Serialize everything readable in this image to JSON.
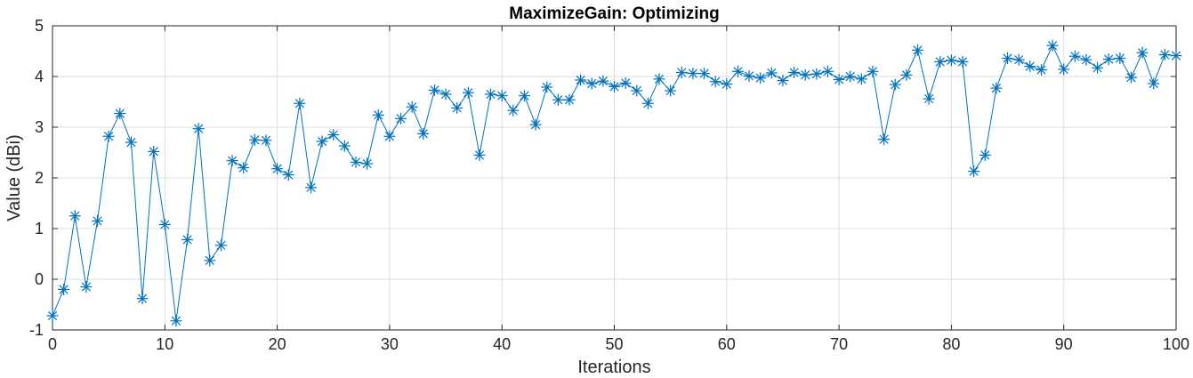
{
  "chart_data": {
    "type": "line",
    "title": "MaximizeGain: Optimizing",
    "xlabel": "Iterations",
    "ylabel": "Value (dBi)",
    "xlim": [
      0,
      100
    ],
    "ylim": [
      -1,
      5
    ],
    "xticks": [
      0,
      10,
      20,
      30,
      40,
      50,
      60,
      70,
      80,
      90,
      100
    ],
    "yticks": [
      -1,
      0,
      1,
      2,
      3,
      4,
      5
    ],
    "xtick_labels": [
      "0",
      "10",
      "20",
      "30",
      "40",
      "50",
      "60",
      "70",
      "80",
      "90",
      "100"
    ],
    "ytick_labels": [
      "-1",
      "0",
      "1",
      "2",
      "3",
      "4",
      "5"
    ],
    "grid": true,
    "color": "#0072BD",
    "marker": "asterisk",
    "series": [
      {
        "x": [
          0,
          1,
          2,
          3,
          4,
          5,
          6,
          7,
          8,
          9,
          10,
          11,
          12,
          13,
          14,
          15,
          16,
          17,
          18,
          19,
          20,
          21,
          22,
          23,
          24,
          25,
          26,
          27,
          28,
          29,
          30,
          31,
          32,
          33,
          34,
          35,
          36,
          37,
          38,
          39,
          40,
          41,
          42,
          43,
          44,
          45,
          46,
          47,
          48,
          49,
          50,
          51,
          52,
          53,
          54,
          55,
          56,
          57,
          58,
          59,
          60,
          61,
          62,
          63,
          64,
          65,
          66,
          67,
          68,
          69,
          70,
          71,
          72,
          73,
          74,
          75,
          76,
          77,
          78,
          79,
          80,
          81,
          82,
          83,
          84,
          85,
          86,
          87,
          88,
          89,
          90,
          91,
          92,
          93,
          94,
          95,
          96,
          97,
          98,
          99,
          100
        ],
        "values": [
          -0.72,
          -0.2,
          1.25,
          -0.15,
          1.15,
          2.82,
          3.27,
          2.7,
          -0.38,
          2.52,
          1.08,
          -0.82,
          0.78,
          2.97,
          0.37,
          0.67,
          2.34,
          2.2,
          2.75,
          2.74,
          2.18,
          2.06,
          3.47,
          1.81,
          2.72,
          2.85,
          2.63,
          2.31,
          2.28,
          3.24,
          2.82,
          3.17,
          3.4,
          2.87,
          3.73,
          3.65,
          3.38,
          3.68,
          2.45,
          3.65,
          3.62,
          3.33,
          3.62,
          3.05,
          3.79,
          3.54,
          3.54,
          3.93,
          3.86,
          3.91,
          3.8,
          3.87,
          3.72,
          3.47,
          3.95,
          3.72,
          4.08,
          4.06,
          4.06,
          3.9,
          3.85,
          4.1,
          4.01,
          3.97,
          4.07,
          3.92,
          4.08,
          4.03,
          4.05,
          4.1,
          3.94,
          4.0,
          3.95,
          4.1,
          2.76,
          3.84,
          4.03,
          4.52,
          3.56,
          4.29,
          4.32,
          4.29,
          2.13,
          2.45,
          3.77,
          4.36,
          4.33,
          4.2,
          4.13,
          4.61,
          4.14,
          4.4,
          4.33,
          4.17,
          4.34,
          4.36,
          3.98,
          4.47,
          3.86,
          4.43,
          4.41
        ]
      }
    ]
  }
}
